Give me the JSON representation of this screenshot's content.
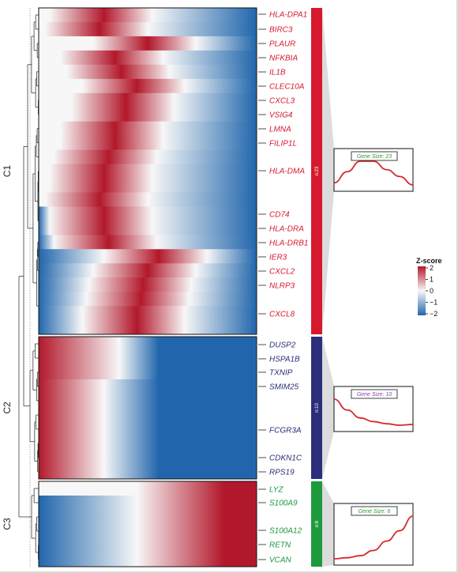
{
  "chart_data": {
    "type": "heatmap",
    "clusters": [
      {
        "id": "C1",
        "label": "C1",
        "n_label": "n:23",
        "gene_size_label": "Gene Size: 23",
        "color": "#d7192f",
        "text_color": "#d7192f",
        "gs_color": "#2a9c2a",
        "genes": [
          "HLA-DPA1",
          "BIRC3",
          "PLAUR",
          "NFKBIA",
          "IL1B",
          "CLEC10A",
          "CXCL3",
          "VSIG4",
          "LMNA",
          "FILIP1L",
          "HLA-DMA",
          "CD74",
          "HLA-DRA",
          "HLA-DRB1",
          "IER3",
          "CXCL2",
          "NLRP3",
          "CXCL8"
        ],
        "trend": [
          -0.6,
          0.2,
          0.95,
          0.95,
          0.35,
          -0.15,
          -0.75
        ]
      },
      {
        "id": "C2",
        "label": "C2",
        "n_label": "n:10",
        "gene_size_label": "Gene Size: 10",
        "color": "#2b2e7a",
        "text_color": "#2b2e7a",
        "gs_color": "#8b3fb3",
        "genes": [
          "DUSP2",
          "HSPA1B",
          "TXNIP",
          "SMIM25",
          "FCGR3A",
          "CDKN1C",
          "RPS19"
        ],
        "trend": [
          1.2,
          0.45,
          -0.1,
          -0.35,
          -0.5,
          -0.6,
          -0.55
        ]
      },
      {
        "id": "C3",
        "label": "C3",
        "n_label": "n:6",
        "gene_size_label": "Gene Size: 6",
        "color": "#1e9a3d",
        "text_color": "#1e9a3d",
        "gs_color": "#2a9c2a",
        "genes": [
          "LYZ",
          "S100A9",
          "S100A12",
          "RETN",
          "VCAN"
        ],
        "trend": [
          -0.75,
          -0.7,
          -0.6,
          -0.35,
          0.1,
          0.6,
          1.3
        ]
      }
    ],
    "legend": {
      "title": "Z-score",
      "ticks": [
        2,
        1,
        0,
        -1,
        -2
      ],
      "colors": [
        "#b2182b",
        "#f7f7f7",
        "#2166ac"
      ]
    },
    "colors": {
      "high": "#b2182b",
      "mid": "#f7f7f7",
      "low": "#2166ac"
    }
  }
}
